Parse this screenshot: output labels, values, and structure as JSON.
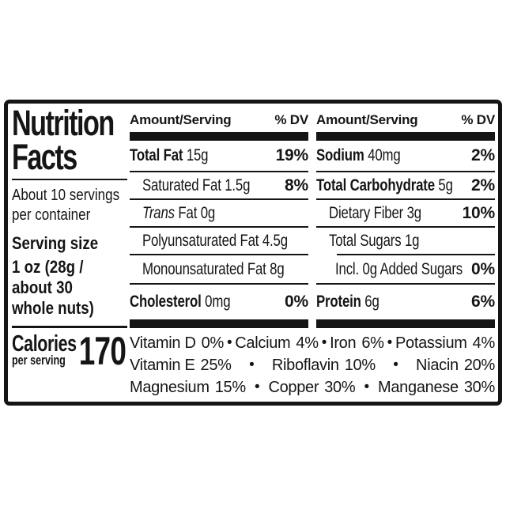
{
  "nutrition_label": {
    "title_lines": [
      "Nutrition",
      "Facts"
    ],
    "servings_per_container_lines": [
      "About 10 servings",
      "per container"
    ],
    "serving_size_label": "Serving size",
    "serving_size_lines": [
      "1 oz (28g /",
      "about 30",
      "whole nuts)"
    ],
    "calories": {
      "label": "Calories",
      "sub_label": "per serving",
      "value": "170"
    },
    "column_header": {
      "amount": "Amount/Serving",
      "dv": "% DV"
    },
    "left_nutrients": [
      {
        "bold": "Total Fat",
        "italic": "",
        "rest": " 15g",
        "dv": "19%"
      },
      {
        "bold": "",
        "italic": "",
        "rest": "Saturated Fat 1.5g",
        "dv": "8%"
      },
      {
        "bold": "",
        "italic": "Trans",
        "rest": " Fat 0g",
        "dv": ""
      },
      {
        "bold": "",
        "italic": "",
        "rest": "Polyunsaturated Fat 4.5g",
        "dv": ""
      },
      {
        "bold": "",
        "italic": "",
        "rest": "Monounsaturated Fat 8g",
        "dv": ""
      },
      {
        "bold": "Cholesterol",
        "italic": "",
        "rest": " 0mg",
        "dv": "0%"
      }
    ],
    "right_nutrients": [
      {
        "bold": "Sodium",
        "italic": "",
        "rest": " 40mg",
        "dv": "2%"
      },
      {
        "bold": "Total Carbohydrate",
        "italic": "",
        "rest": " 5g",
        "dv": "2%"
      },
      {
        "bold": "",
        "italic": "",
        "rest": "Dietary Fiber 3g",
        "dv": "10%"
      },
      {
        "bold": "",
        "italic": "",
        "rest": "Total Sugars 1g",
        "dv": ""
      },
      {
        "bold": "",
        "italic": "",
        "rest": "Incl. 0g Added Sugars",
        "dv": "0%"
      },
      {
        "bold": "Protein",
        "italic": "",
        "rest": " 6g",
        "dv": "6%"
      }
    ],
    "micronutrients": {
      "separator": "•",
      "rows": [
        [
          {
            "name": "Vitamin D",
            "value": "0%"
          },
          {
            "name": "Calcium",
            "value": "4%"
          },
          {
            "name": "Iron",
            "value": "6%"
          },
          {
            "name": "Potassium",
            "value": "4%"
          }
        ],
        [
          {
            "name": "Vitamin E",
            "value": "25%"
          },
          {
            "name": "Riboflavin",
            "value": "10%"
          },
          {
            "name": "Niacin",
            "value": "20%"
          }
        ],
        [
          {
            "name": "Magnesium",
            "value": "15%"
          },
          {
            "name": "Copper",
            "value": "30%"
          },
          {
            "name": "Manganese",
            "value": "30%"
          }
        ]
      ]
    },
    "colors": {
      "ink": "#151515",
      "background": "#ffffff"
    }
  }
}
